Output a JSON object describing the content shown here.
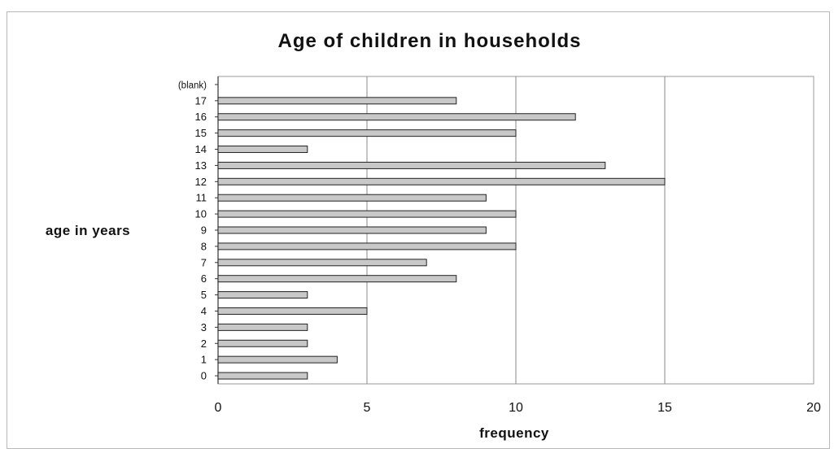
{
  "chart_data": {
    "type": "bar",
    "orientation": "horizontal",
    "title": "Age of children in households",
    "xlabel": "frequency",
    "ylabel": "age in years",
    "categories": [
      "0",
      "1",
      "2",
      "3",
      "4",
      "5",
      "6",
      "7",
      "8",
      "9",
      "10",
      "11",
      "12",
      "13",
      "14",
      "15",
      "16",
      "17",
      "(blank)"
    ],
    "values": [
      3,
      4,
      3,
      3,
      5,
      3,
      8,
      7,
      10,
      9,
      10,
      9,
      15,
      13,
      3,
      10,
      12,
      8,
      null
    ],
    "xlim": [
      0,
      20
    ],
    "xticks": [
      "0",
      "5",
      "10",
      "15",
      "20"
    ],
    "grid": "vertical",
    "legend": "none",
    "colors": {
      "bar_fill": "#c8c8c8",
      "bar_stroke": "#222222",
      "grid": "#8a8a8a",
      "plot_frame": "#9a9a9a"
    }
  }
}
